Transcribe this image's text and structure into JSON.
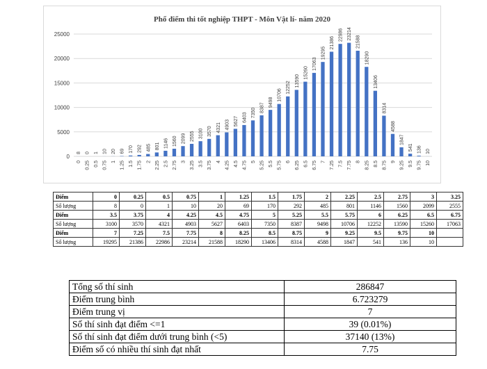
{
  "chart_data": {
    "type": "bar",
    "title": "Phổ điểm thi tốt nghiệp THPT - Môn Vật lí- năm 2020",
    "categories": [
      "0",
      "0.25",
      "0.5",
      "0.75",
      "1",
      "1.25",
      "1.5",
      "1.75",
      "2",
      "2.25",
      "2.5",
      "2.75",
      "3",
      "3.25",
      "3.5",
      "3.75",
      "4",
      "4.25",
      "4.5",
      "4.75",
      "5",
      "5.25",
      "5.5",
      "5.75",
      "6",
      "6.25",
      "6.5",
      "6.75",
      "7",
      "7.25",
      "7.5",
      "7.75",
      "8",
      "8.25",
      "8.5",
      "8.75",
      "9",
      "9.25",
      "9.5",
      "9.75",
      "10"
    ],
    "values": [
      8,
      0,
      1,
      10,
      20,
      69,
      170,
      292,
      485,
      801,
      1146,
      1560,
      2099,
      2555,
      3100,
      3570,
      4321,
      4903,
      5627,
      6403,
      7350,
      8387,
      9498,
      10706,
      12252,
      13590,
      15260,
      17063,
      19295,
      21386,
      22986,
      23214,
      21588,
      18290,
      13406,
      8314,
      4588,
      1847,
      541,
      136,
      10
    ],
    "ylim": [
      0,
      25000
    ],
    "yticks": [
      0,
      5000,
      10000,
      15000,
      20000,
      25000
    ],
    "grid": true,
    "bar_color": "#4472c4"
  },
  "score_table": {
    "row_labels": {
      "score": "Điểm",
      "count": "Số lượng"
    },
    "rows": [
      {
        "scores": [
          "0",
          "0.25",
          "0.5",
          "0.75",
          "1",
          "1.25",
          "1.5",
          "1.75",
          "2",
          "2.25",
          "2.5",
          "2.75",
          "3",
          "3.25"
        ],
        "counts": [
          "8",
          "0",
          "1",
          "10",
          "20",
          "69",
          "170",
          "292",
          "485",
          "801",
          "1146",
          "1560",
          "2099",
          "2555"
        ]
      },
      {
        "scores": [
          "3.5",
          "3.75",
          "4",
          "4.25",
          "4.5",
          "4.75",
          "5",
          "5.25",
          "5.5",
          "5.75",
          "6",
          "6.25",
          "6.5",
          "6.75"
        ],
        "counts": [
          "3100",
          "3570",
          "4321",
          "4903",
          "5627",
          "6403",
          "7350",
          "8387",
          "9498",
          "10706",
          "12252",
          "13590",
          "15260",
          "17063"
        ]
      },
      {
        "scores": [
          "7",
          "7.25",
          "7.5",
          "7.75",
          "8",
          "8.25",
          "8.5",
          "8.75",
          "9",
          "9.25",
          "9.5",
          "9.75",
          "10",
          ""
        ],
        "counts": [
          "19295",
          "21386",
          "22986",
          "23214",
          "21588",
          "18290",
          "13406",
          "8314",
          "4588",
          "1847",
          "541",
          "136",
          "10",
          ""
        ]
      }
    ]
  },
  "stats": [
    {
      "label": "Tổng số thí sinh",
      "value": "286847"
    },
    {
      "label": "Điểm trung bình",
      "value": "6.723279"
    },
    {
      "label": "Điểm trung vị",
      "value": "7"
    },
    {
      "label": "Số thí sinh đạt điểm <=1",
      "value": "39 (0.01%)"
    },
    {
      "label": "Số thí sinh đạt điểm dưới trung bình (<5)",
      "value": "37140 (13%)"
    },
    {
      "label": "Điểm số có nhiều thí sinh đạt nhất",
      "value": "7.75"
    }
  ]
}
